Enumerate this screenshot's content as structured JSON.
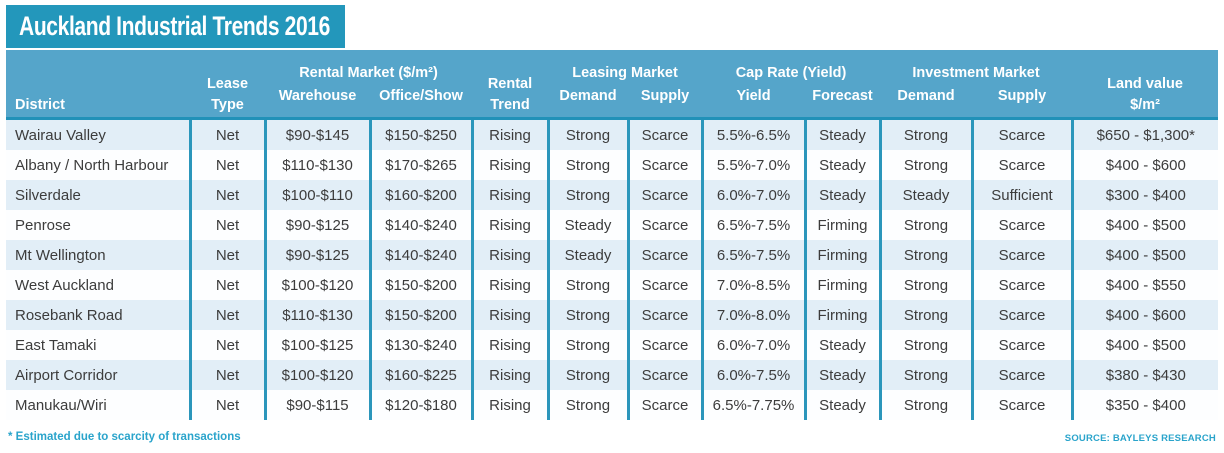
{
  "title": "Auckland Industrial Trends 2016",
  "colors": {
    "title_bar": "#2397bb",
    "header_band": "#55a5ca",
    "column_separator": "#2b96bb",
    "row_alt": "#e2eef7",
    "footnote_text": "#2aa4cb"
  },
  "table": {
    "header": {
      "district": "District",
      "lease_type_line1": "Lease",
      "lease_type_line2": "Type",
      "rental_market_group": "Rental Market ($/m²)",
      "warehouse": "Warehouse",
      "office_show": "Office/Show",
      "rental_trend_line1": "Rental",
      "rental_trend_line2": "Trend",
      "leasing_market_group": "Leasing Market",
      "leasing_demand": "Demand",
      "leasing_supply": "Supply",
      "cap_rate_group": "Cap Rate (Yield)",
      "yield": "Yield",
      "forecast": "Forecast",
      "investment_market_group": "Investment Market",
      "investment_demand": "Demand",
      "investment_supply": "Supply",
      "land_value_line1": "Land value",
      "land_value_line2": "$/m²"
    },
    "rows": [
      {
        "district": "Wairau Valley",
        "lease_type": "Net",
        "warehouse": "$90-$145",
        "office_show": "$150-$250",
        "rental_trend": "Rising",
        "leasing_demand": "Strong",
        "leasing_supply": "Scarce",
        "yield": "5.5%-6.5%",
        "forecast": "Steady",
        "investment_demand": "Strong",
        "investment_supply": "Scarce",
        "land_value": "$650 - $1,300*"
      },
      {
        "district": "Albany / North Harbour",
        "lease_type": "Net",
        "warehouse": "$110-$130",
        "office_show": "$170-$265",
        "rental_trend": "Rising",
        "leasing_demand": "Strong",
        "leasing_supply": "Scarce",
        "yield": "5.5%-7.0%",
        "forecast": "Steady",
        "investment_demand": "Strong",
        "investment_supply": "Scarce",
        "land_value": "$400 - $600"
      },
      {
        "district": "Silverdale",
        "lease_type": "Net",
        "warehouse": "$100-$110",
        "office_show": "$160-$200",
        "rental_trend": "Rising",
        "leasing_demand": "Strong",
        "leasing_supply": "Scarce",
        "yield": "6.0%-7.0%",
        "forecast": "Steady",
        "investment_demand": "Steady",
        "investment_supply": "Sufficient",
        "land_value": "$300 - $400"
      },
      {
        "district": "Penrose",
        "lease_type": "Net",
        "warehouse": "$90-$125",
        "office_show": "$140-$240",
        "rental_trend": "Rising",
        "leasing_demand": "Steady",
        "leasing_supply": "Scarce",
        "yield": "6.5%-7.5%",
        "forecast": "Firming",
        "investment_demand": "Strong",
        "investment_supply": "Scarce",
        "land_value": "$400 - $500"
      },
      {
        "district": "Mt Wellington",
        "lease_type": "Net",
        "warehouse": "$90-$125",
        "office_show": "$140-$240",
        "rental_trend": "Rising",
        "leasing_demand": "Steady",
        "leasing_supply": "Scarce",
        "yield": "6.5%-7.5%",
        "forecast": "Firming",
        "investment_demand": "Strong",
        "investment_supply": "Scarce",
        "land_value": "$400 - $500"
      },
      {
        "district": "West Auckland",
        "lease_type": "Net",
        "warehouse": "$100-$120",
        "office_show": "$150-$200",
        "rental_trend": "Rising",
        "leasing_demand": "Strong",
        "leasing_supply": "Scarce",
        "yield": "7.0%-8.5%",
        "forecast": "Firming",
        "investment_demand": "Strong",
        "investment_supply": "Scarce",
        "land_value": "$400 - $550"
      },
      {
        "district": "Rosebank Road",
        "lease_type": "Net",
        "warehouse": "$110-$130",
        "office_show": "$150-$200",
        "rental_trend": "Rising",
        "leasing_demand": "Strong",
        "leasing_supply": "Scarce",
        "yield": "7.0%-8.0%",
        "forecast": "Firming",
        "investment_demand": "Strong",
        "investment_supply": "Scarce",
        "land_value": "$400 - $600"
      },
      {
        "district": "East Tamaki",
        "lease_type": "Net",
        "warehouse": "$100-$125",
        "office_show": "$130-$240",
        "rental_trend": "Rising",
        "leasing_demand": "Strong",
        "leasing_supply": "Scarce",
        "yield": "6.0%-7.0%",
        "forecast": "Steady",
        "investment_demand": "Strong",
        "investment_supply": "Scarce",
        "land_value": "$400 - $500"
      },
      {
        "district": "Airport Corridor",
        "lease_type": "Net",
        "warehouse": "$100-$120",
        "office_show": "$160-$225",
        "rental_trend": "Rising",
        "leasing_demand": "Strong",
        "leasing_supply": "Scarce",
        "yield": "6.0%-7.5%",
        "forecast": "Steady",
        "investment_demand": "Strong",
        "investment_supply": "Scarce",
        "land_value": "$380 - $430"
      },
      {
        "district": "Manukau/Wiri",
        "lease_type": "Net",
        "warehouse": "$90-$115",
        "office_show": "$120-$180",
        "rental_trend": "Rising",
        "leasing_demand": "Strong",
        "leasing_supply": "Scarce",
        "yield": "6.5%-7.75%",
        "forecast": "Steady",
        "investment_demand": "Strong",
        "investment_supply": "Scarce",
        "land_value": "$350 - $400"
      }
    ]
  },
  "footnote": "* Estimated due to scarcity of transactions",
  "source": "SOURCE: BAYLEYS RESEARCH"
}
